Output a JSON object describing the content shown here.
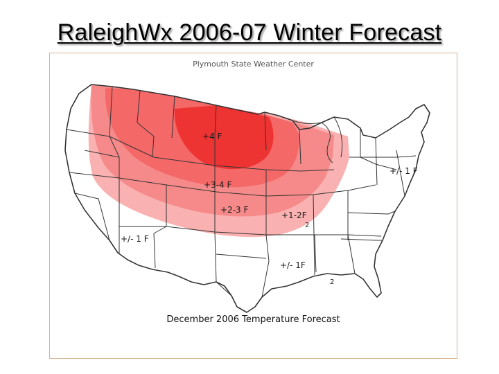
{
  "slide": {
    "title": "RaleighWx 2006-07 Winter Forecast"
  },
  "map": {
    "credit": "Plymouth State Weather Center",
    "caption": "December 2006 Temperature Forecast",
    "zones": [
      {
        "label": "+4 F",
        "color": "#ee3333"
      },
      {
        "label": "+3-4 F",
        "color": "#f46868"
      },
      {
        "label": "+2-3 F",
        "color": "#f68a8a"
      },
      {
        "label": "+1-2F",
        "color": "#fab1b1"
      },
      {
        "label": "+/- 1 F",
        "color": "#ffffff"
      },
      {
        "label": "+/- 1 F",
        "color": "#ffffff"
      },
      {
        "label": "+/- 1F",
        "color": "#ffffff"
      }
    ],
    "stray_marks": [
      "2",
      "2"
    ],
    "colors": {
      "boundary_line": "#333333",
      "frame_border": "#d9b08c"
    }
  }
}
